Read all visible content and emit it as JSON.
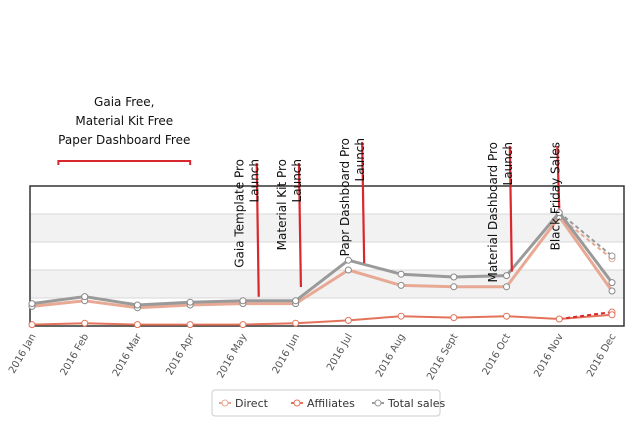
{
  "chart_data": {
    "type": "line",
    "title": "",
    "xlabel": "",
    "ylabel": "",
    "categories": [
      "2016 Jan",
      "2016 Feb",
      "2016 Mar",
      "2016 Apr",
      "2016 May",
      "2016 Jun",
      "2016 Jul",
      "2016 Aug",
      "2016 Sept",
      "2016 Oct",
      "2016 Nov",
      "2016 Dec"
    ],
    "ylim": [
      0,
      100
    ],
    "grid": true,
    "legend": "bottom",
    "series": [
      {
        "name": "Direct",
        "color": "#e8a994",
        "values": [
          14,
          18,
          13,
          15,
          16,
          16,
          40,
          29,
          28,
          28,
          78,
          25
        ],
        "projected_last": 48
      },
      {
        "name": "Affiliates",
        "color": "#e2735a",
        "values": [
          1,
          2,
          1,
          1,
          1,
          2,
          4,
          7,
          6,
          7,
          5,
          8
        ],
        "projected_last": 10
      },
      {
        "name": "Total sales",
        "color": "#9a9a9a",
        "values": [
          16,
          21,
          15,
          17,
          18,
          18,
          47,
          37,
          35,
          36,
          81,
          31
        ],
        "projected_last": 50
      }
    ],
    "annotations": [
      {
        "lines": [
          "Gaia Free,",
          "Material Kit Free",
          "Paper Dashboard Free"
        ],
        "from": 0.5,
        "to": 3.0
      },
      {
        "lines": [
          "Gaia Template Pro",
          "Launch"
        ],
        "at": 4.3,
        "y": 18
      },
      {
        "lines": [
          "Material Kit Pro",
          "Launch"
        ],
        "at": 5.1,
        "y": 25
      },
      {
        "lines": [
          "Papr Dashboard Pro",
          "Launch"
        ],
        "at": 6.3,
        "y": 42
      },
      {
        "lines": [
          "Material Dashboard Pro",
          "Launch"
        ],
        "at": 9.1,
        "y": 36
      },
      {
        "lines": [
          "Black Friday Sales"
        ],
        "at": 10.0,
        "y": 81
      }
    ]
  }
}
